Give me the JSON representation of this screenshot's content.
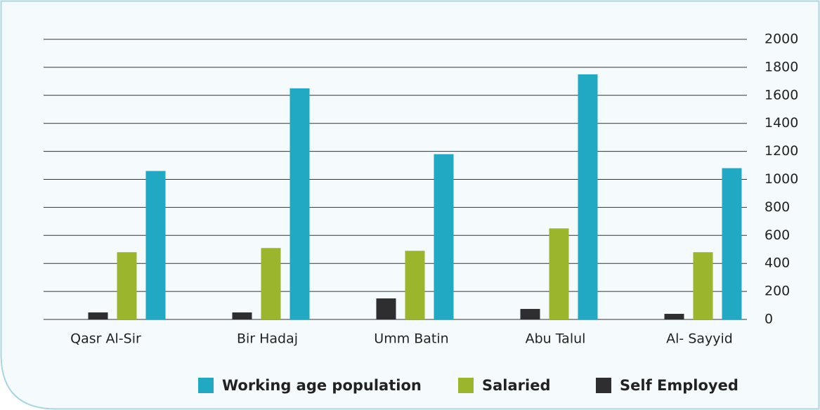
{
  "chart_data": {
    "type": "bar",
    "categories": [
      "Qasr Al-Sir",
      "Bir Hadaj",
      "Umm Batin",
      "Abu Talul",
      "Al- Sayyid"
    ],
    "series": [
      {
        "name": "Self Employed",
        "color": "#2e2e30",
        "values": [
          50,
          50,
          150,
          75,
          40
        ]
      },
      {
        "name": "Salaried",
        "color": "#9bb52d",
        "values": [
          480,
          510,
          490,
          650,
          480
        ]
      },
      {
        "name": "Working age population",
        "color": "#21a9c4",
        "values": [
          1060,
          1650,
          1180,
          1750,
          1080
        ]
      }
    ],
    "ylim": [
      0,
      2000
    ],
    "yticks": [
      0,
      200,
      400,
      600,
      800,
      1000,
      1200,
      1400,
      1600,
      1800,
      2000
    ],
    "grid": true,
    "legend": "bottom"
  }
}
